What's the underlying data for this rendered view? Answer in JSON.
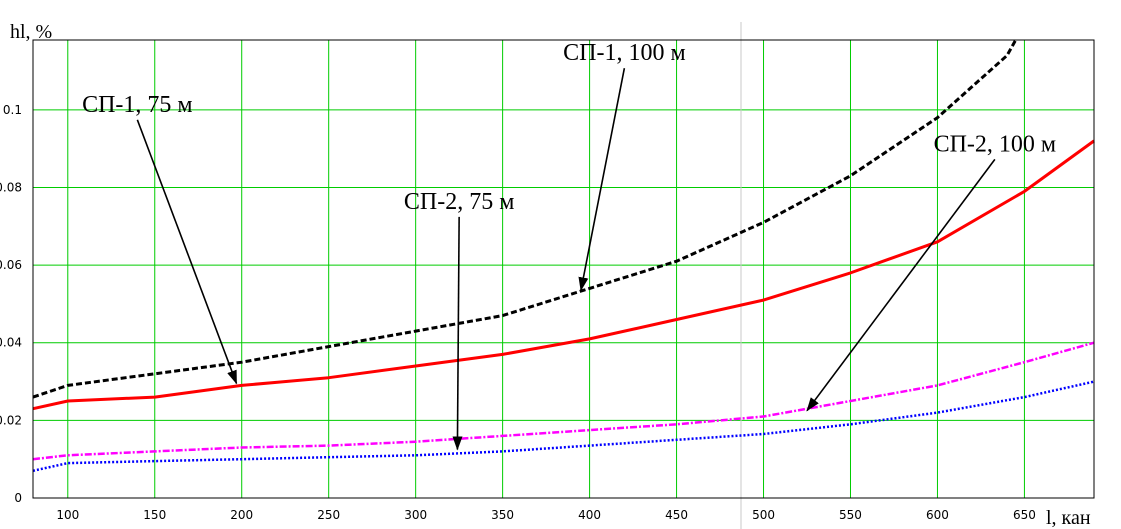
{
  "chart_data": {
    "type": "line",
    "title": "",
    "xlabel": "l, кан",
    "ylabel": "hl, %",
    "xlim": [
      80,
      690
    ],
    "ylim": [
      0,
      0.118
    ],
    "x_ticks": [
      100,
      150,
      200,
      250,
      300,
      350,
      400,
      450,
      500,
      550,
      600,
      650
    ],
    "y_ticks": [
      0,
      0.02,
      0.04,
      0.06,
      0.08,
      0.1
    ],
    "y_tick_labels": [
      "0",
      "0.02",
      "0.04",
      "0.06",
      "0.08",
      "0.1"
    ],
    "grid": true,
    "grid_color": "#00cc00",
    "series": [
      {
        "color": "#000000",
        "style": "dashed",
        "points": [
          [
            80,
            0.026
          ],
          [
            100,
            0.029
          ],
          [
            150,
            0.032
          ],
          [
            200,
            0.035
          ],
          [
            250,
            0.039
          ],
          [
            300,
            0.043
          ],
          [
            350,
            0.047
          ],
          [
            400,
            0.054
          ],
          [
            450,
            0.061
          ],
          [
            500,
            0.071
          ],
          [
            550,
            0.083
          ],
          [
            600,
            0.098
          ],
          [
            640,
            0.114
          ],
          [
            645,
            0.118
          ]
        ]
      },
      {
        "color": "#ff0000",
        "style": "solid",
        "points": [
          [
            80,
            0.023
          ],
          [
            100,
            0.025
          ],
          [
            150,
            0.026
          ],
          [
            200,
            0.029
          ],
          [
            250,
            0.031
          ],
          [
            300,
            0.034
          ],
          [
            350,
            0.037
          ],
          [
            400,
            0.041
          ],
          [
            450,
            0.046
          ],
          [
            500,
            0.051
          ],
          [
            550,
            0.058
          ],
          [
            600,
            0.066
          ],
          [
            650,
            0.079
          ],
          [
            690,
            0.092
          ]
        ]
      },
      {
        "color": "#ff00ff",
        "style": "dashdot",
        "points": [
          [
            80,
            0.01
          ],
          [
            100,
            0.011
          ],
          [
            150,
            0.012
          ],
          [
            200,
            0.013
          ],
          [
            250,
            0.0135
          ],
          [
            300,
            0.0145
          ],
          [
            350,
            0.016
          ],
          [
            400,
            0.0175
          ],
          [
            450,
            0.019
          ],
          [
            500,
            0.021
          ],
          [
            550,
            0.025
          ],
          [
            600,
            0.029
          ],
          [
            650,
            0.035
          ],
          [
            690,
            0.04
          ]
        ]
      },
      {
        "color": "#0000ff",
        "style": "dotted",
        "points": [
          [
            80,
            0.007
          ],
          [
            100,
            0.009
          ],
          [
            150,
            0.0095
          ],
          [
            200,
            0.01
          ],
          [
            250,
            0.0105
          ],
          [
            300,
            0.011
          ],
          [
            350,
            0.012
          ],
          [
            400,
            0.0135
          ],
          [
            450,
            0.015
          ],
          [
            500,
            0.0165
          ],
          [
            550,
            0.019
          ],
          [
            600,
            0.022
          ],
          [
            650,
            0.026
          ],
          [
            690,
            0.03
          ]
        ]
      }
    ],
    "annotations": [
      {
        "text": "СП-1, 100 м",
        "tx": 420,
        "ty": 0.1128,
        "target": [
          395,
          0.0535
        ]
      },
      {
        "text": "СП-1, 75 м",
        "tx": 140,
        "ty": 0.0995,
        "target": [
          197,
          0.0295
        ]
      },
      {
        "text": "СП-2, 100 м",
        "tx": 633,
        "ty": 0.0893,
        "target": [
          525,
          0.0225
        ]
      },
      {
        "text": "СП-2, 75 м",
        "tx": 325,
        "ty": 0.0745,
        "target": [
          324,
          0.0125
        ]
      }
    ]
  }
}
